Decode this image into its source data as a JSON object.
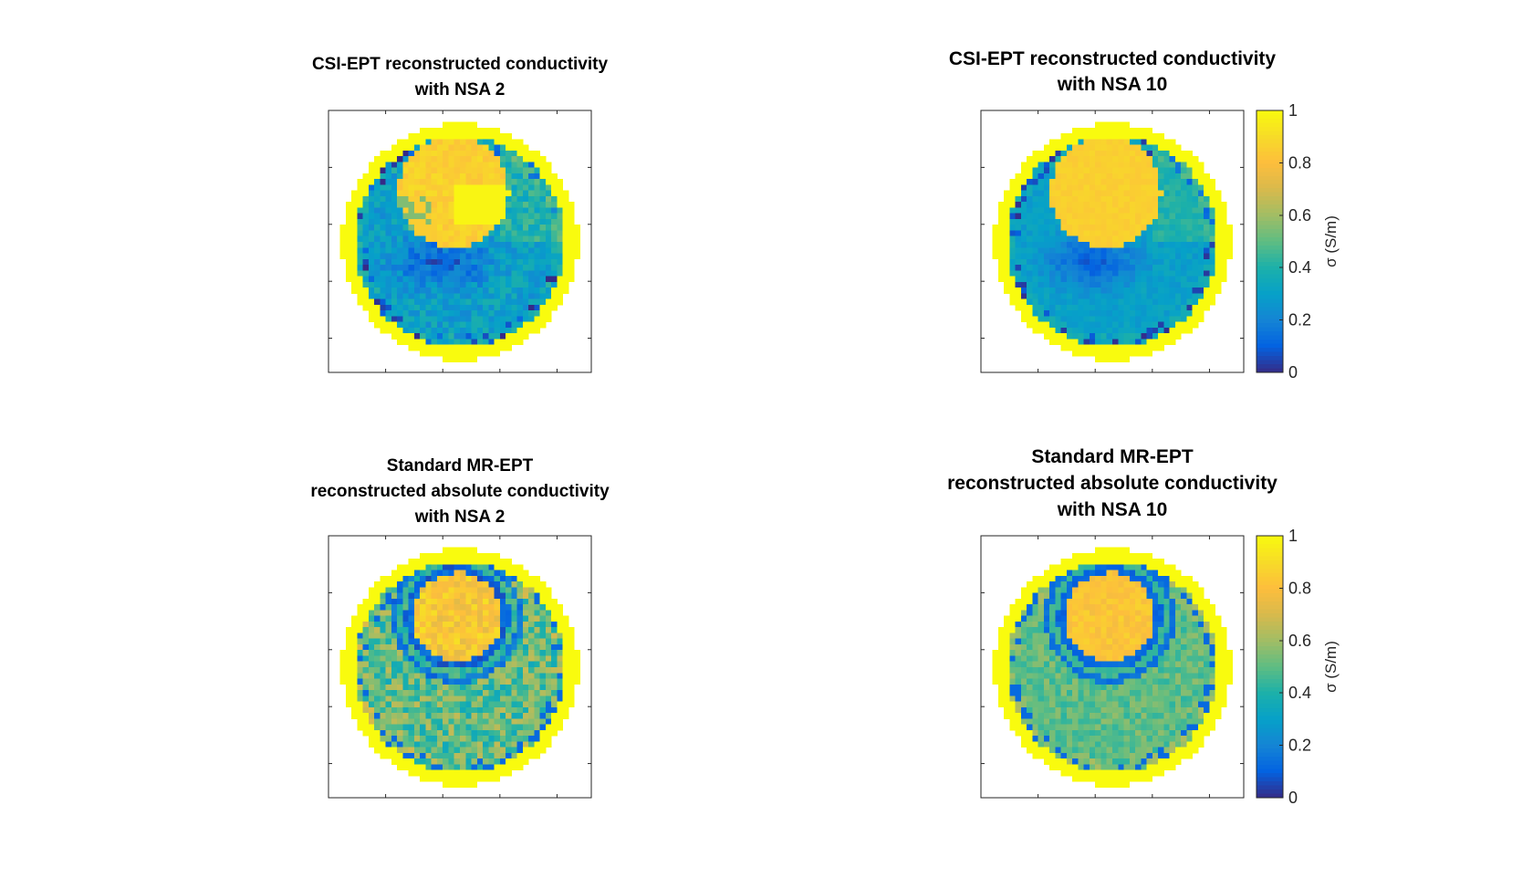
{
  "chart_data": [
    {
      "type": "heatmap",
      "panel": "top-left",
      "title_lines": [
        "CSI-EPT reconstructed conductivity",
        "with NSA 2"
      ],
      "pattern": "csi",
      "seed": 11,
      "noise": 0.09,
      "colorbar": false,
      "clim": [
        0,
        1
      ],
      "values_summary": {
        "rim": 1.0,
        "inclusion": 0.85,
        "background": 0.3,
        "low_region": 0.1
      }
    },
    {
      "type": "heatmap",
      "panel": "top-right",
      "title_lines": [
        "CSI-EPT reconstructed conductivity",
        "with NSA 10"
      ],
      "pattern": "csi",
      "seed": 23,
      "noise": 0.045,
      "colorbar": true,
      "clim": [
        0,
        1
      ],
      "values_summary": {
        "rim": 1.0,
        "inclusion": 0.85,
        "background": 0.32,
        "low_region": 0.15
      }
    },
    {
      "type": "heatmap",
      "panel": "bottom-left",
      "title_lines": [
        "Standard MR-EPT",
        "reconstructed absolute conductivity",
        "with NSA 2"
      ],
      "pattern": "std",
      "seed": 37,
      "noise": 0.16,
      "colorbar": false,
      "clim": [
        0,
        1
      ],
      "values_summary": {
        "rim": 1.0,
        "inclusion": 0.85,
        "ring": 0.1,
        "background": 0.5
      }
    },
    {
      "type": "heatmap",
      "panel": "bottom-right",
      "title_lines": [
        "Standard MR-EPT",
        "reconstructed absolute conductivity",
        "with NSA 10"
      ],
      "pattern": "std",
      "seed": 53,
      "noise": 0.08,
      "colorbar": true,
      "clim": [
        0,
        1
      ],
      "values_summary": {
        "rim": 1.0,
        "inclusion": 0.8,
        "ring": 0.1,
        "background": 0.48
      }
    }
  ],
  "colorbar": {
    "label": "σ (S/m)",
    "ticks": [
      "0",
      "0.2",
      "0.4",
      "0.6",
      "0.8",
      "1"
    ],
    "tick_values": [
      0,
      0.2,
      0.4,
      0.6,
      0.8,
      1
    ]
  },
  "colormap": "parula"
}
